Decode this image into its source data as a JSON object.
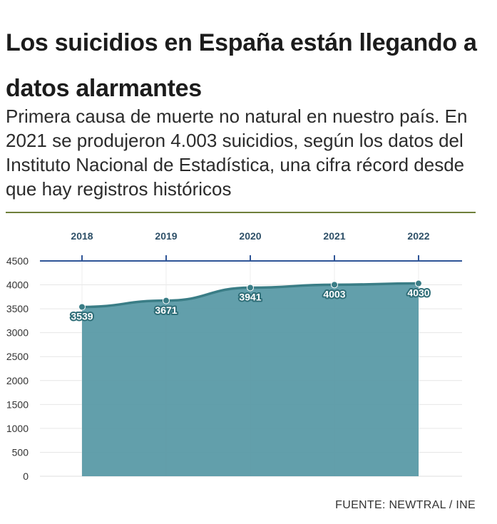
{
  "header": {
    "title": "Los suicidios en España están llegando a datos alarmantes",
    "subtitle": "Primera causa de muerte no natural en nuestro país. En 2021 se produjeron 4.003 suicidios, según los datos del Instituto Nacional de Estadística, una cifra récord desde que hay registros históricos"
  },
  "footer": {
    "source": "FUENTE: NEWTRAL / INE"
  },
  "colors": {
    "area": "#5a9aa6",
    "line": "#3a7d86",
    "axis_top": "#2f5597",
    "accent_rule": "#6f7f3a"
  },
  "chart_data": {
    "type": "area",
    "title": "Los suicidios en España están llegando a datos alarmantes",
    "x": [
      "2018",
      "2019",
      "2020",
      "2021",
      "2022"
    ],
    "values": [
      3539,
      3671,
      3941,
      4003,
      4030
    ],
    "data_labels": [
      "3539",
      "3671",
      "3941",
      "4003",
      "4030"
    ],
    "y_ticks": [
      "0",
      "500",
      "1000",
      "1500",
      "2000",
      "2500",
      "3000",
      "3500",
      "4000",
      "4500"
    ],
    "ylim": [
      0,
      4500
    ],
    "xaxis_position": "top",
    "grid": true,
    "xlabel": "",
    "ylabel": ""
  }
}
